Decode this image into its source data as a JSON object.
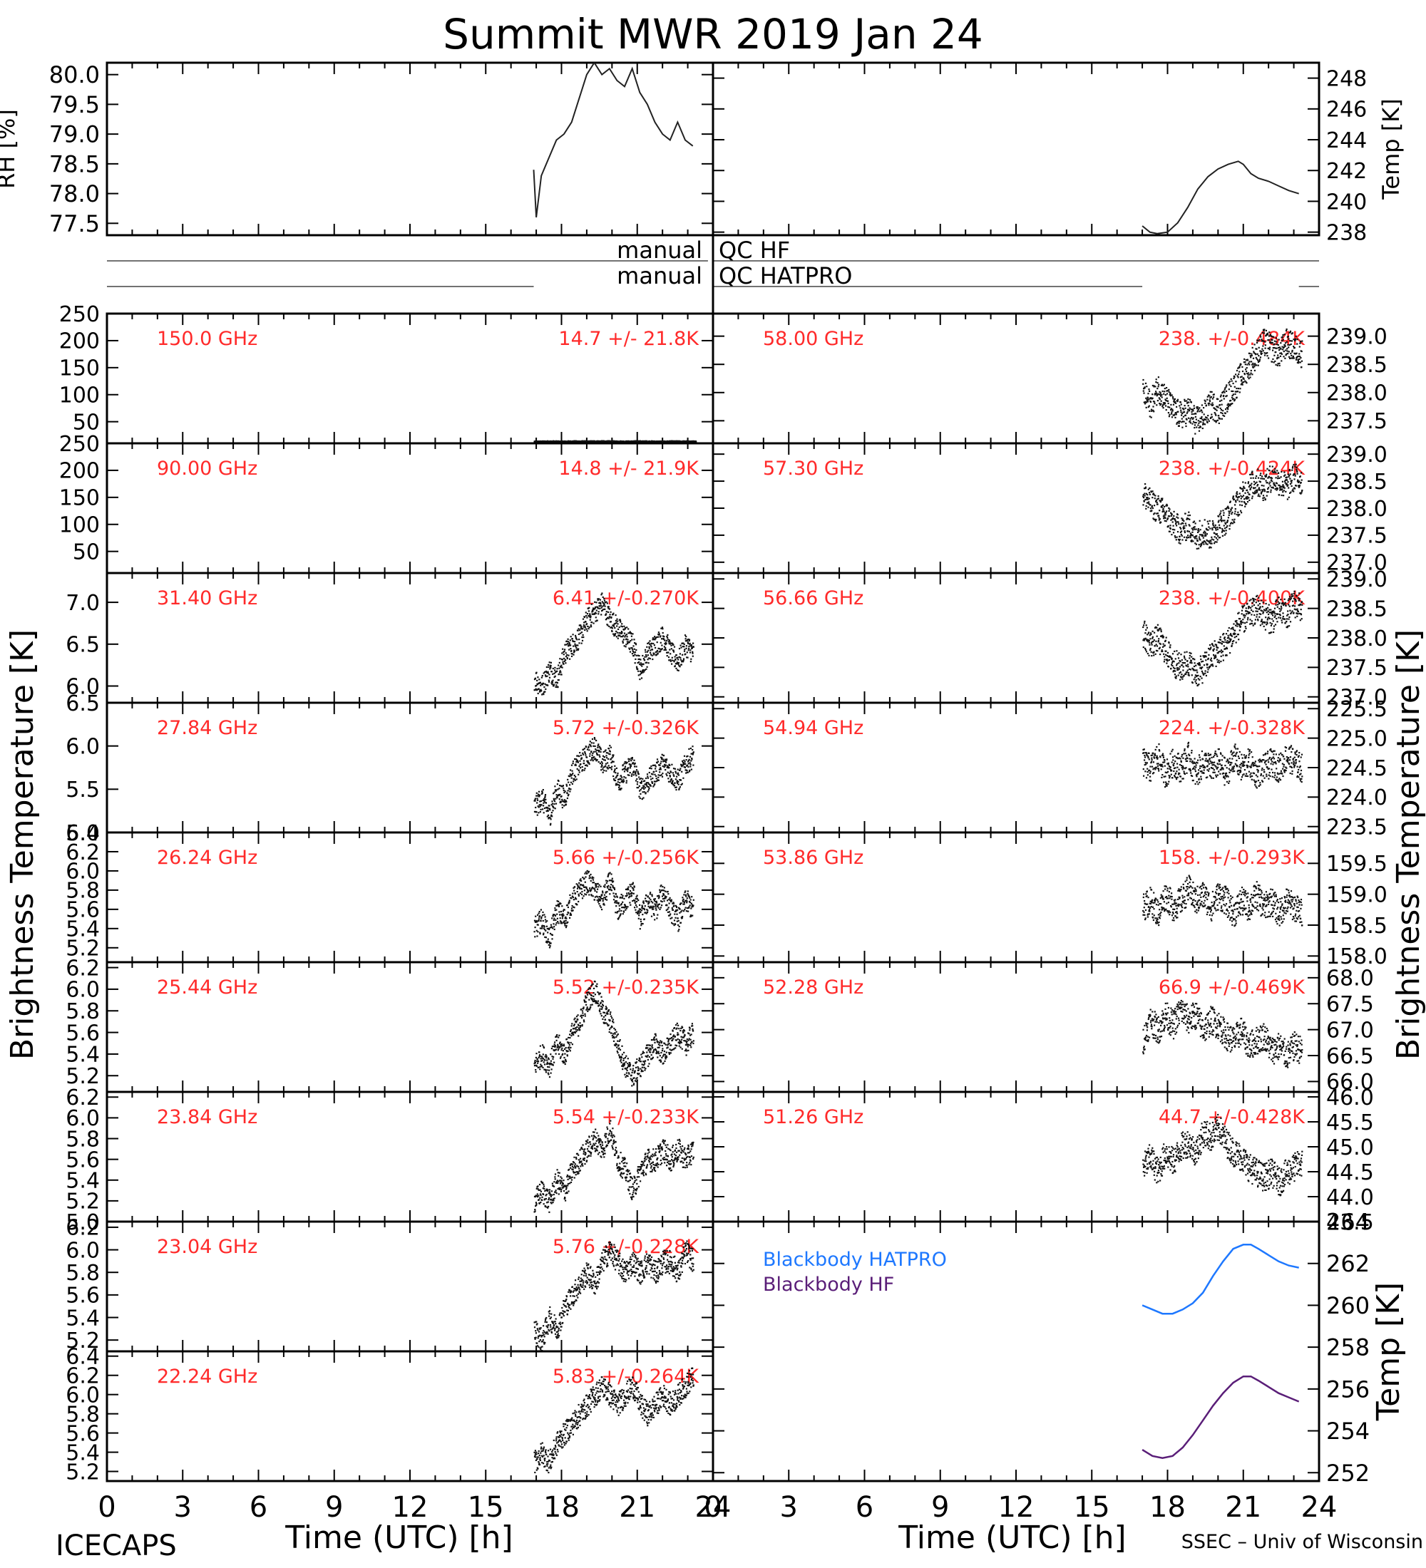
{
  "title": "Summit MWR 2019 Jan 24",
  "footer": {
    "left": "ICECAPS",
    "right": "SSEC – Univ of Wisconsin"
  },
  "xlabel": "Time (UTC) [h]",
  "xticks": [
    "0",
    "3",
    "6",
    "9",
    "12",
    "15",
    "18",
    "21",
    "24"
  ],
  "brightness_ylabel": "Brightness Temperature [K]",
  "colors": {
    "text": "#000000",
    "channel_label": "#ff2a2a",
    "hatpro": "#1e78ff",
    "hf": "#5a1e78"
  },
  "chart_data": [
    {
      "type": "line",
      "name": "met-rh",
      "ylabel": "RH [%]",
      "ylim": [
        77.3,
        80.2
      ],
      "yticks": [
        "77.5",
        "78.0",
        "78.5",
        "79.0",
        "79.5",
        "80.0"
      ],
      "x": [
        16.9,
        17.0,
        17.2,
        17.5,
        17.8,
        18.1,
        18.4,
        18.7,
        19.0,
        19.3,
        19.6,
        19.9,
        20.2,
        20.5,
        20.8,
        21.1,
        21.4,
        21.7,
        22.0,
        22.3,
        22.6,
        22.9,
        23.2
      ],
      "y": [
        78.4,
        77.6,
        78.3,
        78.6,
        78.9,
        79.0,
        79.2,
        79.6,
        80.0,
        80.2,
        80.0,
        80.1,
        79.9,
        79.8,
        80.1,
        79.7,
        79.5,
        79.2,
        79.0,
        78.9,
        79.2,
        78.9,
        78.8
      ]
    },
    {
      "type": "line",
      "name": "met-temp",
      "ylabel": "Temp [K]",
      "ylim": [
        237.8,
        249.0
      ],
      "yticks": [
        "238",
        "240",
        "242",
        "244",
        "246",
        "248"
      ],
      "x": [
        17.0,
        17.3,
        17.6,
        18.0,
        18.4,
        18.8,
        19.2,
        19.6,
        20.0,
        20.4,
        20.8,
        21.0,
        21.3,
        21.6,
        22.0,
        22.4,
        22.8,
        23.2
      ],
      "y": [
        238.4,
        238.0,
        237.9,
        238.0,
        238.6,
        239.6,
        240.8,
        241.6,
        242.1,
        242.4,
        242.6,
        242.4,
        241.8,
        241.5,
        241.3,
        241.0,
        240.7,
        240.5
      ]
    },
    {
      "type": "table",
      "name": "manual-qc",
      "rows": [
        {
          "label": "manual",
          "tag": "QC HF",
          "left_segments": [
            [
              0,
              23.8
            ]
          ],
          "right_segments": [
            [
              0,
              24
            ]
          ]
        },
        {
          "label": "manual",
          "tag": "QC HATPRO",
          "left_segments": [
            [
              0,
              16.9
            ]
          ],
          "right_segments": [
            [
              0,
              17.0
            ],
            [
              23.2,
              24
            ]
          ]
        }
      ]
    },
    {
      "type": "scatter",
      "name": "hf-150",
      "channel": "150.0 GHz",
      "stat": "14.7 +/-  21.8K",
      "ylim": [
        10,
        250
      ],
      "yticks": [
        "50",
        "100",
        "150",
        "200",
        "250"
      ],
      "x": [
        16.9,
        17.5,
        18.0,
        18.5,
        19.0,
        19.5,
        20.0,
        20.5,
        21.0,
        21.5,
        22.0,
        22.5,
        23.0,
        23.3
      ],
      "y": [
        14.5,
        14.8,
        14.6,
        14.9,
        14.7,
        15.0,
        14.8,
        14.6,
        14.9,
        14.7,
        14.6,
        14.8,
        14.7,
        14.5
      ]
    },
    {
      "type": "scatter",
      "name": "hf-90",
      "channel": "90.00 GHz",
      "stat": "14.8 +/-  21.9K",
      "ylim": [
        10,
        250
      ],
      "yticks": [
        "50",
        "100",
        "150",
        "200",
        "250"
      ],
      "x": [],
      "y": []
    },
    {
      "type": "scatter",
      "name": "k-3140",
      "channel": "31.40 GHz",
      "stat": "6.41 +/-0.270K",
      "ylim": [
        5.8,
        7.35
      ],
      "yticks": [
        "6.0",
        "6.5",
        "7.0"
      ],
      "x": [
        16.9,
        17.2,
        17.5,
        17.8,
        18.1,
        18.4,
        18.7,
        19.0,
        19.3,
        19.6,
        19.9,
        20.2,
        20.5,
        20.8,
        21.1,
        21.4,
        21.7,
        22.0,
        22.3,
        22.6,
        22.9,
        23.2
      ],
      "y": [
        6.1,
        6.0,
        6.2,
        6.1,
        6.4,
        6.5,
        6.6,
        6.8,
        6.9,
        7.0,
        6.8,
        6.7,
        6.6,
        6.5,
        6.2,
        6.4,
        6.5,
        6.6,
        6.4,
        6.3,
        6.5,
        6.4
      ]
    },
    {
      "type": "scatter",
      "name": "k-2784",
      "channel": "27.84 GHz",
      "stat": "5.72 +/-0.326K",
      "ylim": [
        5.0,
        6.5
      ],
      "yticks": [
        "5.0",
        "5.5",
        "6.0",
        "6.5"
      ],
      "x": [
        16.9,
        17.2,
        17.5,
        17.8,
        18.1,
        18.4,
        18.7,
        19.0,
        19.3,
        19.6,
        19.9,
        20.2,
        20.5,
        20.8,
        21.1,
        21.4,
        21.7,
        22.0,
        22.3,
        22.6,
        22.9,
        23.2
      ],
      "y": [
        5.3,
        5.4,
        5.2,
        5.5,
        5.4,
        5.7,
        5.8,
        5.9,
        6.0,
        5.8,
        5.9,
        5.6,
        5.7,
        5.8,
        5.5,
        5.6,
        5.7,
        5.8,
        5.7,
        5.6,
        5.8,
        5.9
      ]
    },
    {
      "type": "scatter",
      "name": "k-2624",
      "channel": "26.24 GHz",
      "stat": "5.66 +/-0.256K",
      "ylim": [
        5.05,
        6.4
      ],
      "yticks": [
        "5.2",
        "5.4",
        "5.6",
        "5.8",
        "6.0",
        "6.2",
        "6.4"
      ],
      "x": [
        16.9,
        17.2,
        17.5,
        17.8,
        18.1,
        18.4,
        18.7,
        19.0,
        19.3,
        19.6,
        19.9,
        20.2,
        20.5,
        20.8,
        21.1,
        21.4,
        21.7,
        22.0,
        22.3,
        22.6,
        22.9,
        23.2
      ],
      "y": [
        5.4,
        5.5,
        5.3,
        5.6,
        5.5,
        5.7,
        5.8,
        5.9,
        5.8,
        5.7,
        5.9,
        5.6,
        5.7,
        5.8,
        5.5,
        5.7,
        5.6,
        5.8,
        5.6,
        5.5,
        5.7,
        5.6
      ]
    },
    {
      "type": "scatter",
      "name": "k-2544",
      "channel": "25.44 GHz",
      "stat": "5.52 +/-0.235K",
      "ylim": [
        5.05,
        6.25
      ],
      "yticks": [
        "5.2",
        "5.4",
        "5.6",
        "5.8",
        "6.0",
        "6.2"
      ],
      "x": [
        16.9,
        17.2,
        17.5,
        17.8,
        18.1,
        18.4,
        18.7,
        19.0,
        19.3,
        19.6,
        19.9,
        20.2,
        20.5,
        20.8,
        21.1,
        21.4,
        21.7,
        22.0,
        22.3,
        22.6,
        22.9,
        23.2
      ],
      "y": [
        5.3,
        5.4,
        5.3,
        5.5,
        5.4,
        5.6,
        5.7,
        5.9,
        6.0,
        5.8,
        5.7,
        5.5,
        5.3,
        5.2,
        5.3,
        5.4,
        5.5,
        5.4,
        5.5,
        5.6,
        5.5,
        5.6
      ]
    },
    {
      "type": "scatter",
      "name": "k-2384",
      "channel": "23.84 GHz",
      "stat": "5.54 +/-0.233K",
      "ylim": [
        5.0,
        6.25
      ],
      "yticks": [
        "5.0",
        "5.2",
        "5.4",
        "5.6",
        "5.8",
        "6.0",
        "6.2"
      ],
      "x": [
        16.9,
        17.2,
        17.5,
        17.8,
        18.1,
        18.4,
        18.7,
        19.0,
        19.3,
        19.6,
        19.9,
        20.2,
        20.5,
        20.8,
        21.1,
        21.4,
        21.7,
        22.0,
        22.3,
        22.6,
        22.9,
        23.2
      ],
      "y": [
        5.2,
        5.3,
        5.2,
        5.4,
        5.3,
        5.5,
        5.6,
        5.7,
        5.8,
        5.7,
        5.9,
        5.6,
        5.5,
        5.3,
        5.5,
        5.6,
        5.6,
        5.7,
        5.6,
        5.7,
        5.6,
        5.7
      ]
    },
    {
      "type": "scatter",
      "name": "k-2304",
      "channel": "23.04 GHz",
      "stat": "5.76 +/-0.228K",
      "ylim": [
        5.1,
        6.25
      ],
      "yticks": [
        "5.2",
        "5.4",
        "5.6",
        "5.8",
        "6.0",
        "6.2"
      ],
      "x": [
        16.9,
        17.2,
        17.5,
        17.8,
        18.1,
        18.4,
        18.7,
        19.0,
        19.3,
        19.6,
        19.9,
        20.2,
        20.5,
        20.8,
        21.1,
        21.4,
        21.7,
        22.0,
        22.3,
        22.6,
        22.9,
        23.2
      ],
      "y": [
        5.3,
        5.2,
        5.4,
        5.3,
        5.5,
        5.6,
        5.7,
        5.8,
        5.7,
        5.9,
        6.0,
        5.9,
        5.8,
        5.9,
        5.8,
        5.9,
        5.8,
        5.9,
        5.9,
        5.8,
        6.0,
        5.9
      ]
    },
    {
      "type": "scatter",
      "name": "k-2224",
      "channel": "22.24 GHz",
      "stat": "5.83 +/-0.264K",
      "ylim": [
        5.1,
        6.45
      ],
      "yticks": [
        "5.2",
        "5.4",
        "5.6",
        "5.8",
        "6.0",
        "6.2",
        "6.4"
      ],
      "x": [
        16.9,
        17.2,
        17.5,
        17.8,
        18.1,
        18.4,
        18.7,
        19.0,
        19.3,
        19.6,
        19.9,
        20.2,
        20.5,
        20.8,
        21.1,
        21.4,
        21.7,
        22.0,
        22.3,
        22.6,
        22.9,
        23.2
      ],
      "y": [
        5.3,
        5.4,
        5.3,
        5.5,
        5.6,
        5.7,
        5.8,
        5.9,
        6.0,
        6.1,
        6.0,
        5.9,
        6.0,
        6.1,
        5.9,
        5.8,
        5.9,
        6.0,
        5.9,
        6.0,
        6.1,
        6.2
      ]
    },
    {
      "type": "scatter",
      "name": "v-5800",
      "channel": "58.00 GHz",
      "stat": "238. +/-0.484K",
      "ylim": [
        237.1,
        239.4
      ],
      "yticks": [
        "237.5",
        "238.0",
        "238.5",
        "239.0"
      ],
      "x": [
        17.0,
        17.3,
        17.6,
        17.9,
        18.2,
        18.5,
        18.8,
        19.1,
        19.4,
        19.7,
        20.0,
        20.3,
        20.6,
        20.9,
        21.2,
        21.5,
        21.8,
        22.1,
        22.4,
        22.7,
        23.0,
        23.3
      ],
      "y": [
        238.0,
        237.8,
        238.1,
        237.9,
        237.7,
        237.6,
        237.7,
        237.5,
        237.6,
        237.8,
        237.7,
        237.9,
        238.1,
        238.3,
        238.5,
        238.7,
        238.9,
        238.8,
        238.7,
        238.9,
        238.8,
        238.7
      ]
    },
    {
      "type": "scatter",
      "name": "v-5730",
      "channel": "57.30 GHz",
      "stat": "238. +/-0.424K",
      "ylim": [
        236.8,
        239.2
      ],
      "yticks": [
        "237.0",
        "237.5",
        "238.0",
        "238.5",
        "239.0"
      ],
      "x": [
        17.0,
        17.3,
        17.6,
        17.9,
        18.2,
        18.5,
        18.8,
        19.1,
        19.4,
        19.7,
        20.0,
        20.3,
        20.6,
        20.9,
        21.2,
        21.5,
        21.8,
        22.1,
        22.4,
        22.7,
        23.0,
        23.3
      ],
      "y": [
        238.3,
        238.1,
        238.0,
        237.9,
        237.7,
        237.6,
        237.7,
        237.5,
        237.6,
        237.5,
        237.7,
        237.8,
        238.0,
        238.2,
        238.4,
        238.5,
        238.4,
        238.6,
        238.5,
        238.4,
        238.6,
        238.5
      ]
    },
    {
      "type": "scatter",
      "name": "v-5666",
      "channel": "56.66 GHz",
      "stat": "238. +/-0.400K",
      "ylim": [
        236.9,
        239.1
      ],
      "yticks": [
        "237.0",
        "237.5",
        "238.0",
        "238.5",
        "239.0"
      ],
      "x": [
        17.0,
        17.3,
        17.6,
        17.9,
        18.2,
        18.5,
        18.8,
        19.1,
        19.4,
        19.7,
        20.0,
        20.3,
        20.6,
        20.9,
        21.2,
        21.5,
        21.8,
        22.1,
        22.4,
        22.7,
        23.0,
        23.3
      ],
      "y": [
        238.1,
        237.9,
        238.0,
        237.8,
        237.6,
        237.5,
        237.6,
        237.4,
        237.5,
        237.7,
        237.8,
        237.9,
        238.1,
        238.3,
        238.4,
        238.5,
        238.4,
        238.3,
        238.5,
        238.4,
        238.6,
        238.5
      ]
    },
    {
      "type": "scatter",
      "name": "v-5494",
      "channel": "54.94 GHz",
      "stat": "224. +/-0.328K",
      "ylim": [
        223.4,
        225.6
      ],
      "yticks": [
        "223.5",
        "224.0",
        "224.5",
        "225.0",
        "225.5"
      ],
      "x": [
        17.0,
        17.3,
        17.6,
        17.9,
        18.2,
        18.5,
        18.8,
        19.1,
        19.4,
        19.7,
        20.0,
        20.3,
        20.6,
        20.9,
        21.2,
        21.5,
        21.8,
        22.1,
        22.4,
        22.7,
        23.0,
        23.3
      ],
      "y": [
        224.6,
        224.5,
        224.7,
        224.4,
        224.6,
        224.5,
        224.7,
        224.4,
        224.6,
        224.5,
        224.6,
        224.4,
        224.7,
        224.5,
        224.6,
        224.4,
        224.5,
        224.6,
        224.5,
        224.7,
        224.6,
        224.5
      ]
    },
    {
      "type": "scatter",
      "name": "v-5386",
      "channel": "53.86 GHz",
      "stat": "158. +/-0.293K",
      "ylim": [
        157.9,
        160.0
      ],
      "yticks": [
        "158.0",
        "158.5",
        "159.0",
        "159.5"
      ],
      "x": [
        17.0,
        17.3,
        17.6,
        17.9,
        18.2,
        18.5,
        18.8,
        19.1,
        19.4,
        19.7,
        20.0,
        20.3,
        20.6,
        20.9,
        21.2,
        21.5,
        21.8,
        22.1,
        22.4,
        22.7,
        23.0,
        23.3
      ],
      "y": [
        158.8,
        158.9,
        158.7,
        159.0,
        158.8,
        158.9,
        159.1,
        158.9,
        159.0,
        158.8,
        159.0,
        158.9,
        158.7,
        158.9,
        158.8,
        159.0,
        158.8,
        158.9,
        158.7,
        158.9,
        158.8,
        158.7
      ]
    },
    {
      "type": "scatter",
      "name": "v-5228",
      "channel": "52.28 GHz",
      "stat": "66.9 +/-0.469K",
      "ylim": [
        65.8,
        68.3
      ],
      "yticks": [
        "66.0",
        "66.5",
        "67.0",
        "67.5",
        "68.0"
      ],
      "x": [
        17.0,
        17.3,
        17.6,
        17.9,
        18.2,
        18.5,
        18.8,
        19.1,
        19.4,
        19.7,
        20.0,
        20.3,
        20.6,
        20.9,
        21.2,
        21.5,
        21.8,
        22.1,
        22.4,
        22.7,
        23.0,
        23.3
      ],
      "y": [
        66.8,
        67.2,
        67.0,
        67.3,
        67.1,
        67.4,
        67.2,
        67.3,
        67.0,
        67.2,
        67.1,
        66.9,
        66.8,
        67.0,
        66.7,
        66.8,
        66.9,
        66.6,
        66.7,
        66.5,
        66.7,
        66.6
      ]
    },
    {
      "type": "scatter",
      "name": "v-5126",
      "channel": "51.26 GHz",
      "stat": "44.7 +/-0.428K",
      "ylim": [
        43.5,
        46.1
      ],
      "yticks": [
        "43.5",
        "44.0",
        "44.5",
        "45.0",
        "45.5",
        "46.0"
      ],
      "x": [
        17.0,
        17.3,
        17.6,
        17.9,
        18.2,
        18.5,
        18.8,
        19.1,
        19.4,
        19.7,
        20.0,
        20.3,
        20.6,
        20.9,
        21.2,
        21.5,
        21.8,
        22.1,
        22.4,
        22.7,
        23.0,
        23.3
      ],
      "y": [
        44.6,
        44.8,
        44.5,
        44.9,
        44.7,
        45.0,
        45.1,
        44.9,
        45.3,
        45.2,
        45.4,
        45.1,
        44.9,
        44.8,
        44.6,
        44.5,
        44.4,
        44.5,
        44.3,
        44.5,
        44.6,
        44.7
      ]
    },
    {
      "type": "line",
      "name": "blackbody",
      "ylabel": "Temp [K]",
      "ylim": [
        251.6,
        264.0
      ],
      "yticks": [
        "252",
        "254",
        "256",
        "258",
        "260",
        "262",
        "264"
      ],
      "series": [
        {
          "name": "Blackbody HATPRO",
          "x": [
            17.0,
            17.4,
            17.8,
            18.2,
            18.6,
            19.0,
            19.4,
            19.8,
            20.2,
            20.6,
            21.0,
            21.3,
            21.6,
            22.0,
            22.4,
            22.8,
            23.2
          ],
          "y": [
            260.0,
            259.8,
            259.6,
            259.6,
            259.8,
            260.1,
            260.6,
            261.4,
            262.1,
            262.7,
            262.9,
            262.9,
            262.7,
            262.4,
            262.1,
            261.9,
            261.8
          ]
        },
        {
          "name": "Blackbody HF",
          "x": [
            17.0,
            17.4,
            17.8,
            18.2,
            18.6,
            19.0,
            19.4,
            19.8,
            20.2,
            20.6,
            21.0,
            21.3,
            21.6,
            22.0,
            22.4,
            22.8,
            23.2
          ],
          "y": [
            253.1,
            252.8,
            252.7,
            252.8,
            253.2,
            253.8,
            254.5,
            255.2,
            255.8,
            256.3,
            256.6,
            256.6,
            256.4,
            256.1,
            255.8,
            255.6,
            255.4
          ]
        }
      ]
    }
  ]
}
